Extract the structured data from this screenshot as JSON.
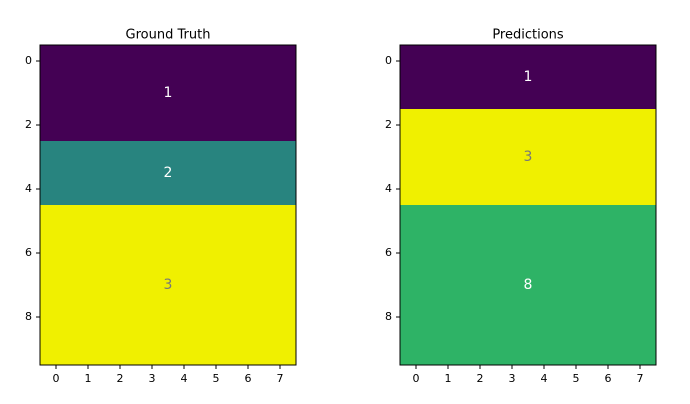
{
  "chart_data": [
    {
      "type": "heatmap",
      "title": "Ground Truth",
      "xlim": [
        -0.5,
        7.5
      ],
      "ylim": [
        9.5,
        -0.5
      ],
      "xticks": [
        0,
        1,
        2,
        3,
        4,
        5,
        6,
        7
      ],
      "yticks": [
        0,
        2,
        4,
        6,
        8
      ],
      "bands": [
        {
          "y_start": -0.5,
          "y_end": 2.5,
          "value": 1,
          "color": "#440154",
          "label_color": "#ffffff"
        },
        {
          "y_start": 2.5,
          "y_end": 4.5,
          "value": 2,
          "color": "#28847f",
          "label_color": "#ffffff"
        },
        {
          "y_start": 4.5,
          "y_end": 9.5,
          "value": 3,
          "color": "#f0f000",
          "label_color": "#777777"
        }
      ]
    },
    {
      "type": "heatmap",
      "title": "Predictions",
      "xlim": [
        -0.5,
        7.5
      ],
      "ylim": [
        9.5,
        -0.5
      ],
      "xticks": [
        0,
        1,
        2,
        3,
        4,
        5,
        6,
        7
      ],
      "yticks": [
        0,
        2,
        4,
        6,
        8
      ],
      "bands": [
        {
          "y_start": -0.5,
          "y_end": 1.5,
          "value": 1,
          "color": "#440154",
          "label_color": "#ffffff"
        },
        {
          "y_start": 1.5,
          "y_end": 4.5,
          "value": 3,
          "color": "#f0f000",
          "label_color": "#777777"
        },
        {
          "y_start": 4.5,
          "y_end": 9.5,
          "value": 8,
          "color": "#2eb366",
          "label_color": "#ffffff"
        }
      ]
    }
  ]
}
